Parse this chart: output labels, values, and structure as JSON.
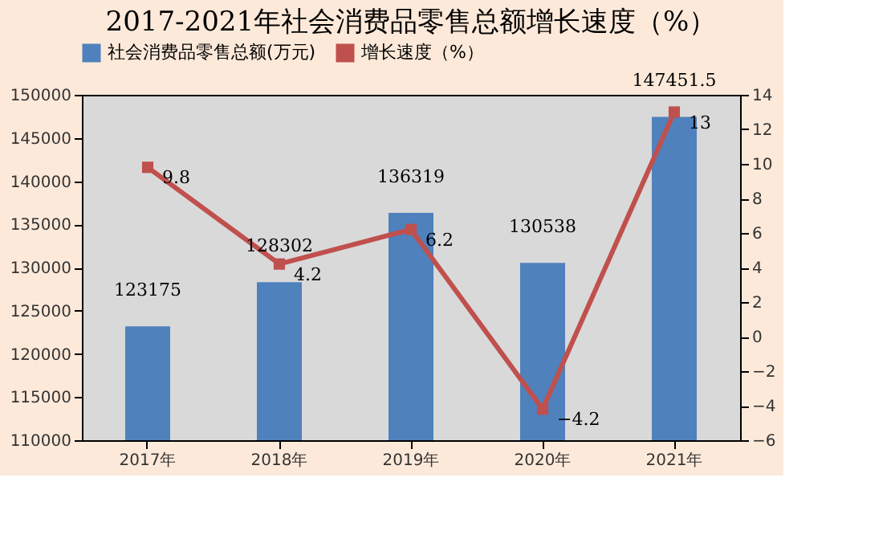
{
  "chart_data": {
    "type": "bar",
    "title": "2017-2021年社会消费品零售总额增长速度（%）",
    "categories": [
      "2017年",
      "2018年",
      "2019年",
      "2020年",
      "2021年"
    ],
    "series": [
      {
        "name": "社会消费品零售总额(万元)",
        "color": "#4f81bd",
        "values": [
          123175,
          128302,
          136319,
          130538,
          147451.5
        ]
      },
      {
        "name": "增长速度（%）",
        "type": "line",
        "axis": "y2",
        "color": "#c0504d",
        "marker": "square",
        "values": [
          9.8,
          4.2,
          6.2,
          -4.2,
          13
        ]
      }
    ],
    "ylim": [
      110000,
      150000
    ],
    "yticks": [
      110000,
      115000,
      120000,
      125000,
      130000,
      135000,
      140000,
      145000,
      150000
    ],
    "y2lim": [
      -6,
      14
    ],
    "y2ticks": [
      -6,
      -4,
      -2,
      0,
      2,
      4,
      6,
      8,
      10,
      12,
      14
    ],
    "data_labels": true,
    "legend": "top",
    "grid": false
  }
}
